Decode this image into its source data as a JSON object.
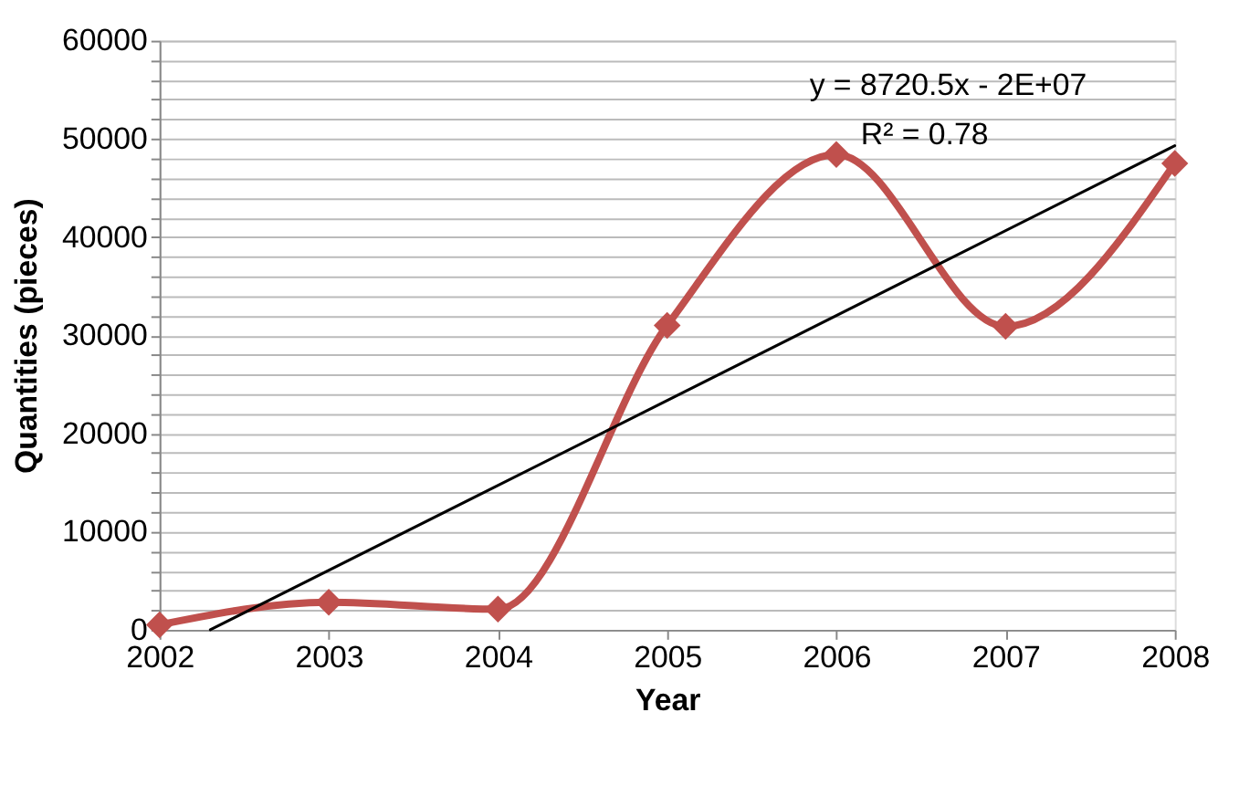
{
  "chart_data": {
    "type": "line",
    "xlabel": "Year",
    "ylabel": "Quantities (pieces)",
    "x": [
      2002,
      2003,
      2004,
      2005,
      2006,
      2007,
      2008
    ],
    "series": [
      {
        "color": "#c0504d",
        "values": [
          500,
          2800,
          2100,
          31000,
          48400,
          30900,
          47500
        ],
        "marker": "diamond"
      },
      {
        "color": "#000000",
        "x": [
          2002.3,
          2008
        ],
        "values": [
          0,
          49300
        ],
        "marker": "none"
      }
    ],
    "xlim": [
      2002,
      2008
    ],
    "xticks": [
      2002,
      2003,
      2004,
      2005,
      2006,
      2007,
      2008
    ],
    "ylim": [
      0,
      60000
    ],
    "yticks": [
      0,
      {
        "value": 2000,
        "label": null
      },
      {
        "value": 4000,
        "label": null
      },
      {
        "value": 6000,
        "label": null
      },
      {
        "value": 8000,
        "label": null
      },
      10000,
      {
        "value": 12000,
        "label": null
      },
      {
        "value": 14000,
        "label": null
      },
      {
        "value": 16000,
        "label": null
      },
      {
        "value": 18000,
        "label": null
      },
      20000,
      {
        "value": 22000,
        "label": null
      },
      {
        "value": 24000,
        "label": null
      },
      {
        "value": 26000,
        "label": null
      },
      {
        "value": 28000,
        "label": null
      },
      30000,
      {
        "value": 32000,
        "label": null
      },
      {
        "value": 34000,
        "label": null
      },
      {
        "value": 36000,
        "label": null
      },
      {
        "value": 38000,
        "label": null
      },
      40000,
      {
        "value": 42000,
        "label": null
      },
      {
        "value": 44000,
        "label": null
      },
      {
        "value": 46000,
        "label": null
      },
      {
        "value": 48000,
        "label": null
      },
      50000,
      {
        "value": 52000,
        "label": null
      },
      {
        "value": 54000,
        "label": null
      },
      {
        "value": 56000,
        "label": null
      },
      {
        "value": 58000,
        "label": null
      },
      60000
    ],
    "grid": "y",
    "line_style": "solid",
    "annotations": [
      "y = 8720.5x - 2E+07",
      "R² = 0.78"
    ]
  }
}
